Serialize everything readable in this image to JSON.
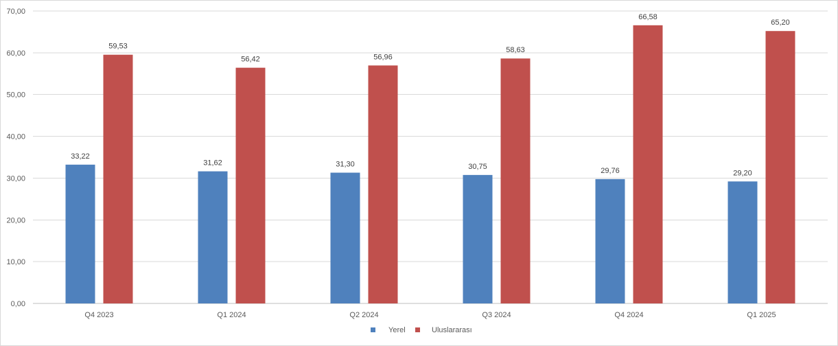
{
  "chart_data": {
    "type": "bar",
    "title": "",
    "xlabel": "",
    "ylabel": "",
    "categories": [
      "Q4 2023",
      "Q1 2024",
      "Q2 2024",
      "Q3 2024",
      "Q4 2024",
      "Q1 2025"
    ],
    "series": [
      {
        "name": "Yerel",
        "color": "#4f81bd",
        "values": [
          33.22,
          31.62,
          31.3,
          30.75,
          29.76,
          29.2
        ],
        "labels": [
          "33,22",
          "31,62",
          "31,30",
          "30,75",
          "29,76",
          "29,20"
        ]
      },
      {
        "name": "Uluslararası",
        "color": "#c0504d",
        "values": [
          59.53,
          56.42,
          56.96,
          58.63,
          66.58,
          65.2
        ],
        "labels": [
          "59,53",
          "56,42",
          "56,96",
          "58,63",
          "66,58",
          "65,20"
        ]
      }
    ],
    "ylim": [
      0,
      70
    ],
    "yticks": [
      "0,00",
      "10,00",
      "20,00",
      "30,00",
      "40,00",
      "50,00",
      "60,00",
      "70,00"
    ],
    "grid": true,
    "gridColor": "#d9d9d9",
    "legendPosition": "bottom"
  }
}
